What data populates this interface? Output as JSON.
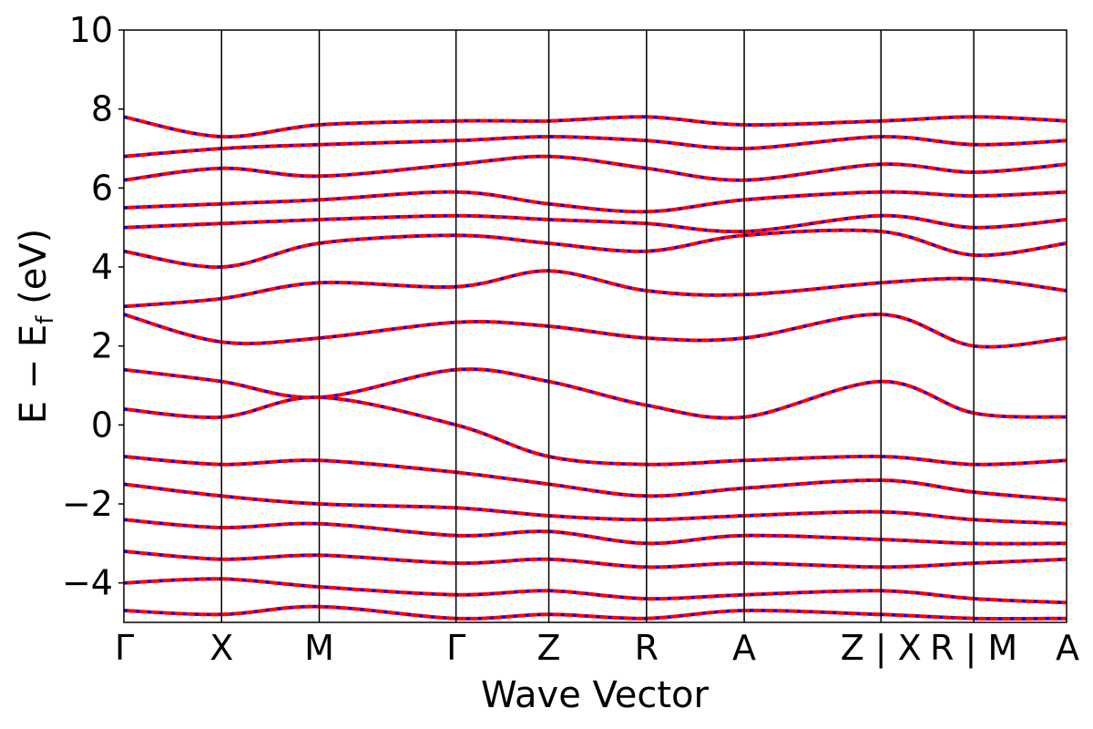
{
  "chart_data": {
    "type": "line",
    "title": "",
    "xlabel": "Wave Vector",
    "ylabel": "E  −  E",
    "ylabel_subscript": "f",
    "ylabel_unit": " (eV)",
    "ylim": [
      -5,
      10
    ],
    "yticks": [
      "−4",
      "−2",
      "0",
      "2",
      "4",
      "6",
      "8",
      "10"
    ],
    "ytick_values": [
      -4,
      -2,
      0,
      2,
      4,
      6,
      8,
      10
    ],
    "kpath_positions": [
      0,
      1,
      2,
      3.4,
      4.35,
      5.35,
      6.35,
      7.75,
      8.7,
      9.65
    ],
    "kpath_labels": [
      "Γ",
      "X",
      "M",
      "Γ",
      "Z",
      "R",
      "A",
      "Z | X",
      "R | M",
      "A"
    ],
    "grid": false,
    "legend": "none",
    "series": [
      {
        "x": [
          0,
          1,
          2,
          3.4,
          4.35,
          5.35,
          6.35,
          7.75,
          8.7,
          9.65
        ],
        "values": [
          7.8,
          7.3,
          7.6,
          7.7,
          7.7,
          7.8,
          7.6,
          7.7,
          7.8,
          7.7
        ]
      },
      {
        "x": [
          0,
          1,
          2,
          3.4,
          4.35,
          5.35,
          6.35,
          7.75,
          8.7,
          9.65
        ],
        "values": [
          6.8,
          7.0,
          7.1,
          7.2,
          7.3,
          7.2,
          7.0,
          7.3,
          7.1,
          7.2
        ]
      },
      {
        "x": [
          0,
          1,
          2,
          3.4,
          4.35,
          5.35,
          6.35,
          7.75,
          8.7,
          9.65
        ],
        "values": [
          6.2,
          6.5,
          6.3,
          6.6,
          6.8,
          6.5,
          6.2,
          6.6,
          6.4,
          6.6
        ]
      },
      {
        "x": [
          0,
          1,
          2,
          3.4,
          4.35,
          5.35,
          6.35,
          7.75,
          8.7,
          9.65
        ],
        "values": [
          5.5,
          5.6,
          5.7,
          5.9,
          5.6,
          5.4,
          5.7,
          5.9,
          5.8,
          5.9
        ]
      },
      {
        "x": [
          0,
          1,
          2,
          3.4,
          4.35,
          5.35,
          6.35,
          7.75,
          8.7,
          9.65
        ],
        "values": [
          5.0,
          5.1,
          5.2,
          5.3,
          5.2,
          5.1,
          4.9,
          5.3,
          5.0,
          5.2
        ]
      },
      {
        "x": [
          0,
          1,
          2,
          3.4,
          4.35,
          5.35,
          6.35,
          7.75,
          8.7,
          9.65
        ],
        "values": [
          4.4,
          4.0,
          4.6,
          4.8,
          4.6,
          4.4,
          4.8,
          4.9,
          4.3,
          4.6
        ]
      },
      {
        "x": [
          0,
          1,
          2,
          3.4,
          4.35,
          5.35,
          6.35,
          7.75,
          8.7,
          9.65
        ],
        "values": [
          3.0,
          3.2,
          3.6,
          3.5,
          3.9,
          3.4,
          3.3,
          3.6,
          3.7,
          3.4
        ]
      },
      {
        "x": [
          0,
          1,
          2,
          3.4,
          4.35,
          5.35,
          6.35,
          7.75,
          8.7,
          9.65
        ],
        "values": [
          2.8,
          2.1,
          2.2,
          2.6,
          2.5,
          2.2,
          2.2,
          2.8,
          2.0,
          2.2
        ]
      },
      {
        "x": [
          0,
          1,
          2,
          3.4,
          4.35,
          5.35,
          6.35,
          7.75,
          8.7,
          9.65
        ],
        "values": [
          1.4,
          1.1,
          0.7,
          1.4,
          1.1,
          0.5,
          0.2,
          1.1,
          0.3,
          0.2
        ]
      },
      {
        "x": [
          0,
          1,
          2,
          3.4,
          4.35,
          5.35,
          6.35,
          7.75,
          8.7,
          9.65
        ],
        "values": [
          0.4,
          0.2,
          0.7,
          0.0,
          -0.8,
          -1.0,
          -0.9,
          -0.8,
          -1.0,
          -0.9
        ]
      },
      {
        "x": [
          0,
          1,
          2,
          3.4,
          4.35,
          5.35,
          6.35,
          7.75,
          8.7,
          9.65
        ],
        "values": [
          -0.8,
          -1.0,
          -0.9,
          -1.2,
          -1.5,
          -1.8,
          -1.6,
          -1.4,
          -1.7,
          -1.9
        ]
      },
      {
        "x": [
          0,
          1,
          2,
          3.4,
          4.35,
          5.35,
          6.35,
          7.75,
          8.7,
          9.65
        ],
        "values": [
          -1.5,
          -1.8,
          -2.0,
          -2.1,
          -2.3,
          -2.4,
          -2.3,
          -2.2,
          -2.4,
          -2.5
        ]
      },
      {
        "x": [
          0,
          1,
          2,
          3.4,
          4.35,
          5.35,
          6.35,
          7.75,
          8.7,
          9.65
        ],
        "values": [
          -2.4,
          -2.6,
          -2.5,
          -2.8,
          -2.7,
          -3.0,
          -2.8,
          -2.9,
          -3.0,
          -3.0
        ]
      },
      {
        "x": [
          0,
          1,
          2,
          3.4,
          4.35,
          5.35,
          6.35,
          7.75,
          8.7,
          9.65
        ],
        "values": [
          -3.2,
          -3.4,
          -3.3,
          -3.5,
          -3.4,
          -3.6,
          -3.5,
          -3.6,
          -3.5,
          -3.4
        ]
      },
      {
        "x": [
          0,
          1,
          2,
          3.4,
          4.35,
          5.35,
          6.35,
          7.75,
          8.7,
          9.65
        ],
        "values": [
          -4.0,
          -3.9,
          -4.1,
          -4.3,
          -4.2,
          -4.4,
          -4.3,
          -4.2,
          -4.4,
          -4.5
        ]
      },
      {
        "x": [
          0,
          1,
          2,
          3.4,
          4.35,
          5.35,
          6.35,
          7.75,
          8.7,
          9.65
        ],
        "values": [
          -4.7,
          -4.8,
          -4.6,
          -4.9,
          -4.8,
          -4.9,
          -4.7,
          -4.8,
          -4.9,
          -4.9
        ]
      }
    ]
  },
  "colors": {
    "band_main": "#ff0000",
    "band_overlay": "#0000ff",
    "axis": "#000000"
  }
}
